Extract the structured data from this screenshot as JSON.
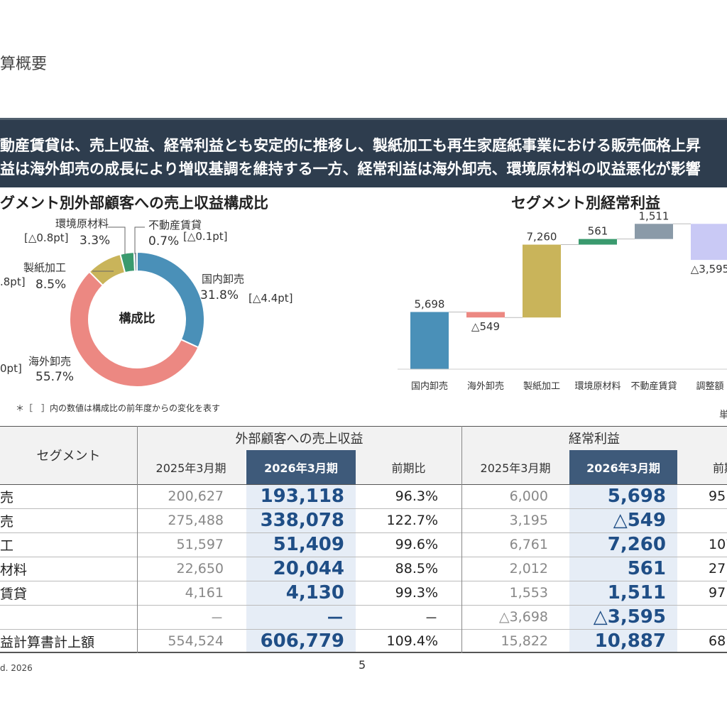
{
  "page": {
    "title": "算概要",
    "page_number": "5",
    "copyright": "d. 2026"
  },
  "banner": {
    "line1": "動産賃貸は、売上収益、経常利益とも安定的に推移し、製紙加工も再生家庭紙事業における販売価格上昇",
    "line2": "益は海外卸売の成長により増収基調を維持する一方、経常利益は海外卸売、環境原材料の収益悪化が影響"
  },
  "donut": {
    "section_title": "グメント別外部顧客への売上収益構成比",
    "center_label": "構成比",
    "footnote": "＊［　］内の数値は構成比の前年度からの変化を表す",
    "segments": [
      {
        "name": "国内卸売",
        "pct": "31.8%",
        "change": "[△4.4pt]",
        "share": 31.8,
        "color": "#4a90b8"
      },
      {
        "name": "海外卸売",
        "pct": "55.7%",
        "change": "0pt]",
        "share": 55.7,
        "color": "#ec8882"
      },
      {
        "name": "製紙加工",
        "pct": "8.5%",
        "change": ".8pt]",
        "share": 8.5,
        "color": "#c9b45a"
      },
      {
        "name": "環境原材料",
        "pct": "3.3%",
        "change": "[△0.8pt]",
        "share": 3.3,
        "color": "#3a9a6e"
      },
      {
        "name": "不動産賃貸",
        "pct": "0.7%",
        "change": "[△0.1pt]",
        "share": 0.7,
        "color": "#8a9aa8"
      }
    ]
  },
  "chart_data": {
    "type": "bar",
    "title": "セグメント別経常利益",
    "categories": [
      "国内卸売",
      "海外卸売",
      "製紙加工",
      "環境原材料",
      "不動産賃貸",
      "調整額"
    ],
    "values": [
      5698,
      -549,
      7260,
      561,
      1511,
      -3595
    ],
    "value_labels": [
      "5,698",
      "△549",
      "7,260",
      "561",
      "1,511",
      "△3,595"
    ],
    "colors": [
      "#4a90b8",
      "#ec8882",
      "#c9b45a",
      "#3a9a6e",
      "#8a9aa8",
      "#c9c9f5"
    ],
    "waterfall": true,
    "unit_label": "単"
  },
  "table": {
    "seg_header": "セグメント",
    "group1": "外部顧客への売上収益",
    "group2": "経常利益",
    "col_prev": "2025年3月期",
    "col_curr": "2026年3月期",
    "col_ratio": "前期比",
    "col_ratio2": "前期",
    "rows": [
      {
        "seg": "売",
        "r_prev": "200,627",
        "r_curr": "193,118",
        "r_ratio": "96.3%",
        "p_prev": "6,000",
        "p_curr": "5,698",
        "p_ratio": "95"
      },
      {
        "seg": "売",
        "r_prev": "275,488",
        "r_curr": "338,078",
        "r_ratio": "122.7%",
        "p_prev": "3,195",
        "p_curr": "△549",
        "p_ratio": ""
      },
      {
        "seg": "工",
        "r_prev": "51,597",
        "r_curr": "51,409",
        "r_ratio": "99.6%",
        "p_prev": "6,761",
        "p_curr": "7,260",
        "p_ratio": "107"
      },
      {
        "seg": "材料",
        "r_prev": "22,650",
        "r_curr": "20,044",
        "r_ratio": "88.5%",
        "p_prev": "2,012",
        "p_curr": "561",
        "p_ratio": "27"
      },
      {
        "seg": "賃貸",
        "r_prev": "4,161",
        "r_curr": "4,130",
        "r_ratio": "99.3%",
        "p_prev": "1,553",
        "p_curr": "1,511",
        "p_ratio": "97"
      },
      {
        "seg": "",
        "r_prev": "－",
        "r_curr": "－",
        "r_ratio": "－",
        "p_prev": "△3,698",
        "p_curr": "△3,595",
        "p_ratio": ""
      },
      {
        "seg": "益計算書計上額",
        "r_prev": "554,524",
        "r_curr": "606,779",
        "r_ratio": "109.4%",
        "p_prev": "15,822",
        "p_curr": "10,887",
        "p_ratio": "68"
      }
    ]
  }
}
